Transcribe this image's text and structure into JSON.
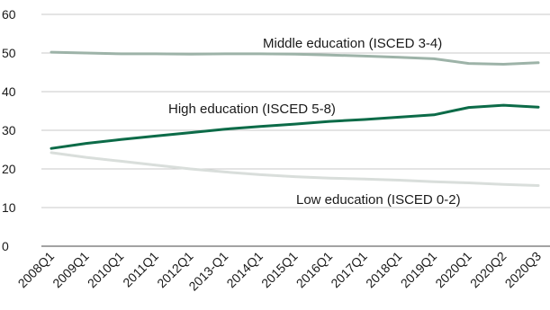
{
  "chart_data": {
    "type": "line",
    "x": [
      "2008Q1",
      "2009Q1",
      "2010Q1",
      "2011Q1",
      "2012Q1",
      "2013-Q1",
      "2014Q1",
      "2015Q1",
      "2016Q1",
      "2017Q1",
      "2018Q1",
      "2019Q1",
      "2020Q1",
      "2020Q2",
      "2020Q3"
    ],
    "ylim": [
      0,
      60
    ],
    "yticks": [
      0,
      10,
      20,
      30,
      40,
      50,
      60
    ],
    "grid": true,
    "series": [
      {
        "name": "Middle education (ISCED 3-4)",
        "color": "#9db3a8",
        "values": [
          50.2,
          50.0,
          49.8,
          49.8,
          49.7,
          49.8,
          49.8,
          49.7,
          49.5,
          49.2,
          48.9,
          48.5,
          47.3,
          47.1,
          47.5
        ]
      },
      {
        "name": "High education (ISCED 5-8)",
        "color": "#0c6b48",
        "values": [
          25.3,
          26.6,
          27.6,
          28.5,
          29.4,
          30.3,
          31.0,
          31.6,
          32.3,
          32.8,
          33.4,
          34.0,
          35.9,
          36.5,
          36.0
        ]
      },
      {
        "name": "Low education (ISCED 0-2)",
        "color": "#d9dedb",
        "values": [
          24.2,
          23.0,
          22.0,
          21.0,
          20.0,
          19.2,
          18.5,
          18.0,
          17.6,
          17.4,
          17.1,
          16.7,
          16.4,
          16.0,
          15.7
        ]
      }
    ]
  }
}
